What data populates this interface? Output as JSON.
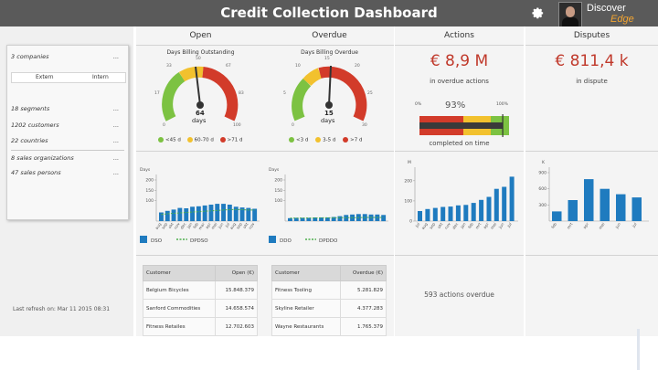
{
  "header": {
    "title": "Credit Collection Dashboard",
    "brand_line1": "Discover",
    "brand_line2": "Edge"
  },
  "filters": {
    "items": [
      {
        "label": "3 companies",
        "dots": "..."
      },
      {
        "label": "18 segments",
        "dots": "..."
      },
      {
        "label": "1202 customers",
        "dots": "..."
      },
      {
        "label": "22 countries",
        "dots": "..."
      },
      {
        "label": "8 sales organizations",
        "dots": "..."
      },
      {
        "label": "47 sales persons",
        "dots": "..."
      }
    ],
    "sub_left": "Extern",
    "sub_right": "Intern",
    "last_refresh": "Last refresh on: Mar 11 2015 08:31"
  },
  "columns": {
    "open": {
      "header": "Open",
      "gauge_title": "Days Billing Outstanding",
      "gauge_value": "64",
      "gauge_unit": "days",
      "gauge_ticks": [
        "0",
        "17",
        "33",
        "50",
        "67",
        "83",
        "100"
      ],
      "legend": [
        "<45 d",
        "60-70 d",
        ">71 d"
      ],
      "chart_ylabel": "Days",
      "chart_legend": [
        "DSO",
        "DPDSO"
      ],
      "table_headers": [
        "Customer",
        "Open (€)"
      ],
      "table_rows": [
        [
          "Belgium Bicycles",
          "15.848.379"
        ],
        [
          "Sanford Commodities",
          "14.658.574"
        ],
        [
          "Fitness Retailes",
          "12.702.603"
        ]
      ]
    },
    "overdue": {
      "header": "Overdue",
      "gauge_title": "Days Billing Overdue",
      "gauge_value": "15",
      "gauge_unit": "days",
      "gauge_ticks": [
        "0",
        "5",
        "10",
        "15",
        "20",
        "25",
        "30"
      ],
      "legend": [
        "<3 d",
        "3-5 d",
        ">7 d"
      ],
      "chart_ylabel": "Days",
      "chart_legend": [
        "DDO",
        "DPDDO"
      ],
      "table_headers": [
        "Customer",
        "Overdue (€)"
      ],
      "table_rows": [
        [
          "Fitness Tooling",
          "5.281.829"
        ],
        [
          "Skyline Retailer",
          "4.377.283"
        ],
        [
          "Wayne Restaurants",
          "1.765.379"
        ]
      ]
    },
    "actions": {
      "header": "Actions",
      "big_value": "€ 8,9 M",
      "caption": "in overdue actions",
      "progress_pct": "93%",
      "progress_min": "0%",
      "progress_max": "100%",
      "progress_caption": "completed on time",
      "overdue_actions": "593 actions overdue"
    },
    "disputes": {
      "header": "Disputes",
      "big_value": "€ 811,4 k",
      "caption": "in dispute"
    }
  },
  "colors": {
    "accent_blue": "#1f7bbf",
    "red": "#d23b2a",
    "yellow": "#f2c12e",
    "green": "#7cc242",
    "dark_header": "#5a5a5a"
  },
  "chart_data": [
    {
      "type": "bar",
      "ylabel": "Days",
      "ylim": [
        0,
        200
      ],
      "yticks": [
        "100",
        "150",
        "200"
      ],
      "categories": [
        "aug",
        "sep",
        "okt",
        "nov",
        "dec",
        "jan",
        "feb",
        "mar",
        "apr",
        "mei",
        "jun",
        "jul",
        "aug",
        "sep",
        "okt",
        "nov"
      ],
      "series": [
        {
          "name": "DSO",
          "values": [
            42,
            50,
            56,
            64,
            62,
            70,
            72,
            76,
            80,
            84,
            84,
            80,
            70,
            66,
            64,
            60
          ]
        },
        {
          "name": "DPDSO",
          "values": [
            32,
            36,
            38,
            40,
            42,
            44,
            46,
            48,
            50,
            52,
            54,
            56,
            56,
            56,
            54,
            54
          ]
        }
      ]
    },
    {
      "type": "bar",
      "ylabel": "Days",
      "ylim": [
        0,
        200
      ],
      "yticks": [
        "100",
        "150",
        "200"
      ],
      "categories": [
        "aug",
        "sep",
        "okt",
        "nov",
        "dec",
        "jan",
        "feb",
        "mar",
        "apr",
        "mei",
        "jun",
        "jul",
        "aug",
        "sep",
        "okt",
        "nov"
      ],
      "series": [
        {
          "name": "DDO",
          "values": [
            14,
            16,
            16,
            16,
            18,
            18,
            18,
            20,
            24,
            30,
            32,
            34,
            34,
            32,
            32,
            30
          ]
        },
        {
          "name": "DPDDO",
          "values": [
            14,
            14,
            15,
            15,
            15,
            16,
            16,
            16,
            17,
            17,
            17,
            17,
            18,
            18,
            18,
            18
          ]
        }
      ]
    },
    {
      "type": "bar",
      "ylim": [
        0,
        240
      ],
      "yticks": [
        "0",
        "100",
        "200",
        "M"
      ],
      "categories": [
        "jul",
        "aug",
        "sep",
        "okt",
        "nov",
        "dec",
        "jan",
        "feb",
        "mrt",
        "apr",
        "mei",
        "jun",
        "jul"
      ],
      "values": [
        50,
        60,
        65,
        70,
        72,
        78,
        80,
        90,
        105,
        120,
        160,
        170,
        220
      ]
    },
    {
      "type": "bar",
      "ylim": [
        0,
        900
      ],
      "yticks": [
        "300",
        "600",
        "900",
        "K"
      ],
      "categories": [
        "feb",
        "mrt",
        "apr",
        "mei",
        "jun",
        "jul"
      ],
      "values": [
        180,
        390,
        780,
        600,
        500,
        440
      ]
    }
  ]
}
